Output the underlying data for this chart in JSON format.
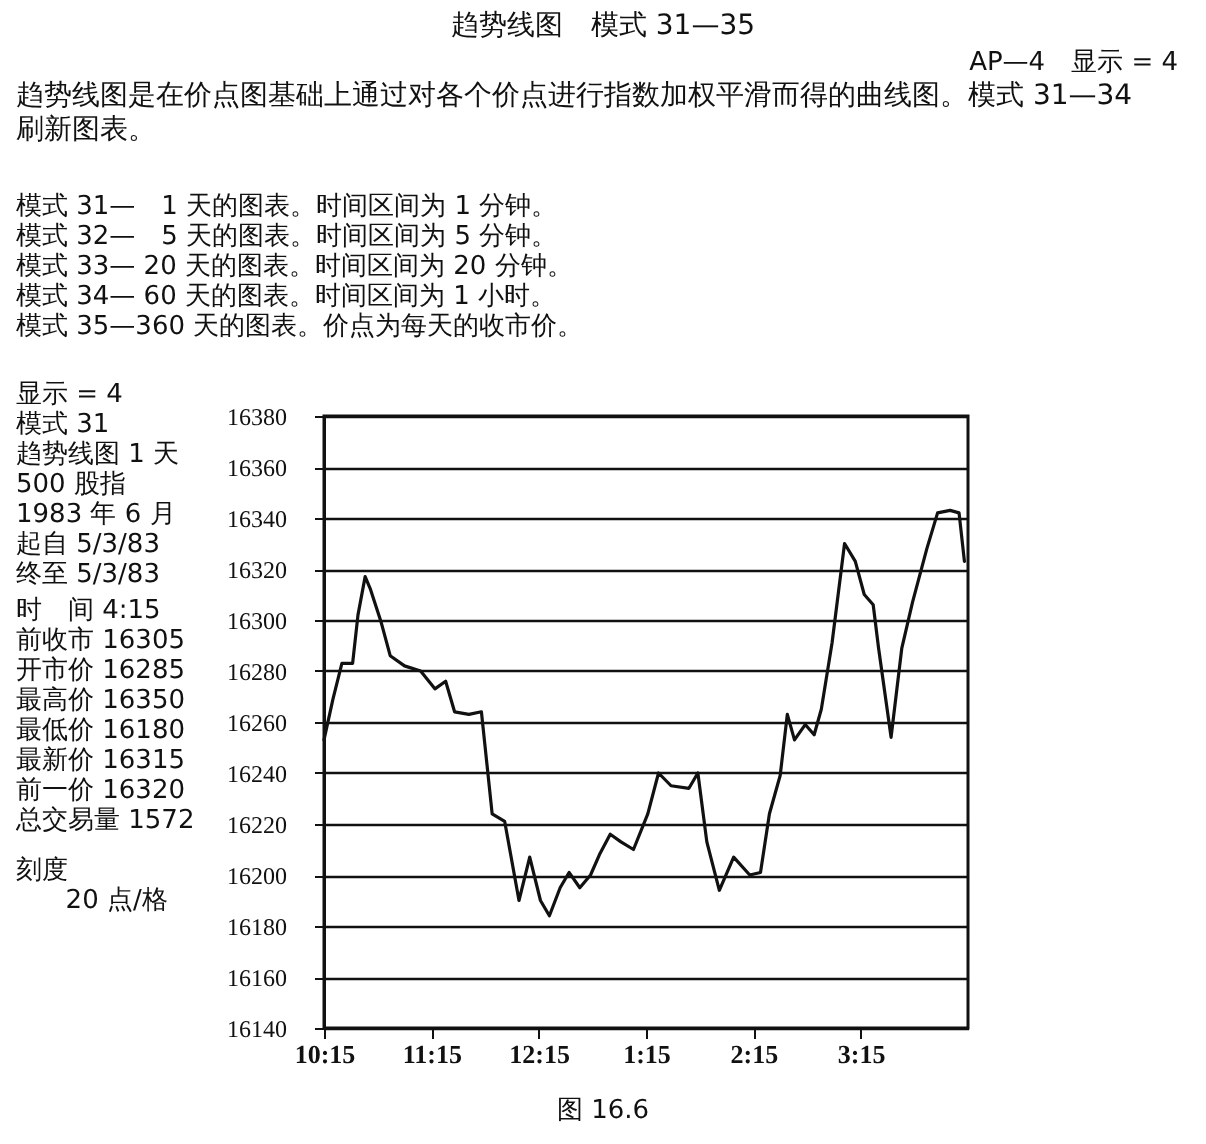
{
  "chart_data": {
    "type": "line",
    "title": "趋势线图　模式 31—35",
    "subtitle": "AP—4　显示 = 4",
    "annotations": [
      "趋势线图是在价点图基础上通过对各个价点进行指数加权平滑而得的曲线图。模式 31—34 刷新图表。",
      "模式 31—　1 天的图表。时间区间为 1 分钟。",
      "模式 32—　5 天的图表。时间区间为 5 分钟。",
      "模式 33— 20 天的图表。时间区间为 20 分钟。",
      "模式 34— 60 天的图表。时间区间为 1 小时。",
      "模式 35—360 天的图表。价点为每天的收市价。",
      "显示 = 4",
      "模式 31",
      "趋势线图 1 天",
      "500 股指",
      "1983 年 6 月",
      "起自 5/3/83",
      "终至 5/3/83",
      "时　间 4:15",
      "前收市 16305",
      "开市价 16285",
      "最高价 16350",
      "最低价 16180",
      "最新价 16315",
      "前一价 16320",
      "总交易量 1572",
      "刻度",
      "20 点/格",
      "图 16.6"
    ],
    "x": [
      "1983-05-03T10:15",
      "1983-05-03T10:20",
      "1983-05-03T10:25",
      "1983-05-03T10:31",
      "1983-05-03T10:34",
      "1983-05-03T10:38",
      "1983-05-03T10:41",
      "1983-05-03T10:47",
      "1983-05-03T10:52",
      "1983-05-03T11:00",
      "1983-05-03T11:09",
      "1983-05-03T11:17",
      "1983-05-03T11:23",
      "1983-05-03T11:28",
      "1983-05-03T11:36",
      "1983-05-03T11:43",
      "1983-05-03T11:49",
      "1983-05-03T11:56",
      "1983-05-03T12:04",
      "1983-05-03T12:10",
      "1983-05-03T12:16",
      "1983-05-03T12:21",
      "1983-05-03T12:27",
      "1983-05-03T12:32",
      "1983-05-03T12:38",
      "1983-05-03T12:44",
      "1983-05-03T12:49",
      "1983-05-03T12:55",
      "1983-05-03T13:01",
      "1983-05-03T13:08",
      "1983-05-03T13:16",
      "1983-05-03T13:22",
      "1983-05-03T13:29",
      "1983-05-03T13:39",
      "1983-05-03T13:44",
      "1983-05-03T13:49",
      "1983-05-03T13:56",
      "1983-05-03T14:04",
      "1983-05-03T14:13",
      "1983-05-03T14:19",
      "1983-05-03T14:24",
      "1983-05-03T14:30",
      "1983-05-03T14:34",
      "1983-05-03T14:38",
      "1983-05-03T14:44",
      "1983-05-03T14:49",
      "1983-05-03T14:53",
      "1983-05-03T14:59",
      "1983-05-03T15:06",
      "1983-05-03T15:12",
      "1983-05-03T15:17",
      "1983-05-03T15:22",
      "1983-05-03T15:25",
      "1983-05-03T15:32",
      "1983-05-03T15:38",
      "1983-05-03T15:44",
      "1983-05-03T15:52",
      "1983-05-03T15:58",
      "1983-05-03T16:05",
      "1983-05-03T16:10",
      "1983-05-03T16:13"
    ],
    "series": [
      {
        "color": "#111111",
        "values": [
          16253,
          16269,
          16283,
          16283,
          16302,
          16317,
          16312,
          16299,
          16286,
          16282,
          16280,
          16273,
          16276,
          16264,
          16263,
          16264,
          16224,
          16221,
          16190,
          16207,
          16190,
          16184,
          16195,
          16201,
          16195,
          16200,
          16208,
          16216,
          16213,
          16210,
          16224,
          16240,
          16235,
          16234,
          16240,
          16213,
          16194,
          16207,
          16200,
          16201,
          16224,
          16239,
          16263,
          16253,
          16259,
          16255,
          16265,
          16291,
          16330,
          16323,
          16310,
          16306,
          16289,
          16254,
          16289,
          16307,
          16328,
          16342,
          16343,
          16342,
          16323
        ]
      }
    ],
    "xlim": [
      "1983-05-03T10:15",
      "1983-05-03T16:15"
    ],
    "xticks": [
      {
        "value": "1983-05-03T10:15",
        "label": "10:15"
      },
      {
        "value": "1983-05-03T11:15",
        "label": "11:15"
      },
      {
        "value": "1983-05-03T12:15",
        "label": "12:15"
      },
      {
        "value": "1983-05-03T13:15",
        "label": "1:15"
      },
      {
        "value": "1983-05-03T14:15",
        "label": "2:15"
      },
      {
        "value": "1983-05-03T15:15",
        "label": "3:15"
      }
    ],
    "ylim": [
      16140,
      16380
    ],
    "yticks": [
      16140,
      16160,
      16180,
      16200,
      16220,
      16240,
      16260,
      16280,
      16300,
      16320,
      16340,
      16360,
      16380
    ],
    "grid": "y",
    "marker": "none",
    "line_style": "solid"
  }
}
